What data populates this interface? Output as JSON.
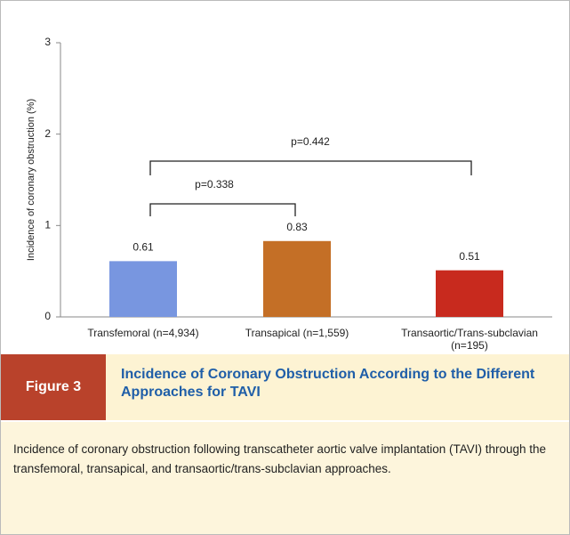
{
  "chart_data": {
    "type": "bar",
    "ylabel": "Incidence of coronary obstruction (%)",
    "categories": [
      "Transfemoral (n=4,934)",
      "Transapical (n=1,559)",
      "Transaortic/Trans-subclavian (n=195)"
    ],
    "values": [
      0.61,
      0.83,
      0.51
    ],
    "colors": [
      "#7896e0",
      "#c46f26",
      "#c82a1e"
    ],
    "ylim": [
      0,
      3
    ],
    "yticks": [
      0,
      1,
      2,
      3
    ],
    "annotations": [
      "p=0.338",
      "p=0.442"
    ]
  },
  "figure": {
    "label": "Figure 3",
    "title": "Incidence of Coronary Obstruction According to the Different Approaches for TAVI",
    "caption": "Incidence of coronary obstruction following transcatheter aortic valve implantation (TAVI) through the transfemoral, transapical, and transaortic/trans-subclavian approaches."
  }
}
